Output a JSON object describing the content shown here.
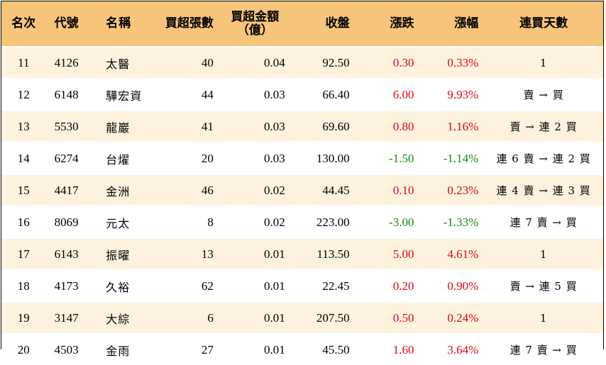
{
  "headers": {
    "rank": "名次",
    "code": "代號",
    "name": "名稱",
    "net_buy_lots": "買超張數",
    "net_buy_amount_line1": "買超金額",
    "net_buy_amount_line2": "（億）",
    "close": "收盤",
    "change": "漲跌",
    "change_pct": "漲幅",
    "consecutive_days": "連買天數"
  },
  "colors": {
    "header_bg": "#f7c57a",
    "row_alt_bg": "#fdf2dd",
    "up": "#e0060f",
    "down": "#138a13"
  },
  "rows": [
    {
      "rank": "11",
      "code": "4126",
      "name": "太醫",
      "lots": "40",
      "amount": "0.04",
      "close": "92.50",
      "change": "0.30",
      "pct": "0.33%",
      "days": "1",
      "dir": "up"
    },
    {
      "rank": "12",
      "code": "6148",
      "name": "驊宏資",
      "lots": "44",
      "amount": "0.03",
      "close": "66.40",
      "change": "6.00",
      "pct": "9.93%",
      "days": "賣 → 買",
      "dir": "up"
    },
    {
      "rank": "13",
      "code": "5530",
      "name": "龍巖",
      "lots": "41",
      "amount": "0.03",
      "close": "69.60",
      "change": "0.80",
      "pct": "1.16%",
      "days": "賣 → 連 2 買",
      "dir": "up"
    },
    {
      "rank": "14",
      "code": "6274",
      "name": "台燿",
      "lots": "20",
      "amount": "0.03",
      "close": "130.00",
      "change": "-1.50",
      "pct": "-1.14%",
      "days": "連 6 賣 → 連 2 買",
      "dir": "down"
    },
    {
      "rank": "15",
      "code": "4417",
      "name": "金洲",
      "lots": "46",
      "amount": "0.02",
      "close": "44.45",
      "change": "0.10",
      "pct": "0.23%",
      "days": "連 4 賣 → 連 3 買",
      "dir": "up"
    },
    {
      "rank": "16",
      "code": "8069",
      "name": "元太",
      "lots": "8",
      "amount": "0.02",
      "close": "223.00",
      "change": "-3.00",
      "pct": "-1.33%",
      "days": "連 7 賣 → 買",
      "dir": "down"
    },
    {
      "rank": "17",
      "code": "6143",
      "name": "振曜",
      "lots": "13",
      "amount": "0.01",
      "close": "113.50",
      "change": "5.00",
      "pct": "4.61%",
      "days": "1",
      "dir": "up"
    },
    {
      "rank": "18",
      "code": "4173",
      "name": "久裕",
      "lots": "62",
      "amount": "0.01",
      "close": "22.45",
      "change": "0.20",
      "pct": "0.90%",
      "days": "賣 → 連 5 買",
      "dir": "up"
    },
    {
      "rank": "19",
      "code": "3147",
      "name": "大綜",
      "lots": "6",
      "amount": "0.01",
      "close": "207.50",
      "change": "0.50",
      "pct": "0.24%",
      "days": "1",
      "dir": "up"
    },
    {
      "rank": "20",
      "code": "4503",
      "name": "金雨",
      "lots": "27",
      "amount": "0.01",
      "close": "45.50",
      "change": "1.60",
      "pct": "3.64%",
      "days": "連 7 賣 → 買",
      "dir": "up"
    }
  ]
}
